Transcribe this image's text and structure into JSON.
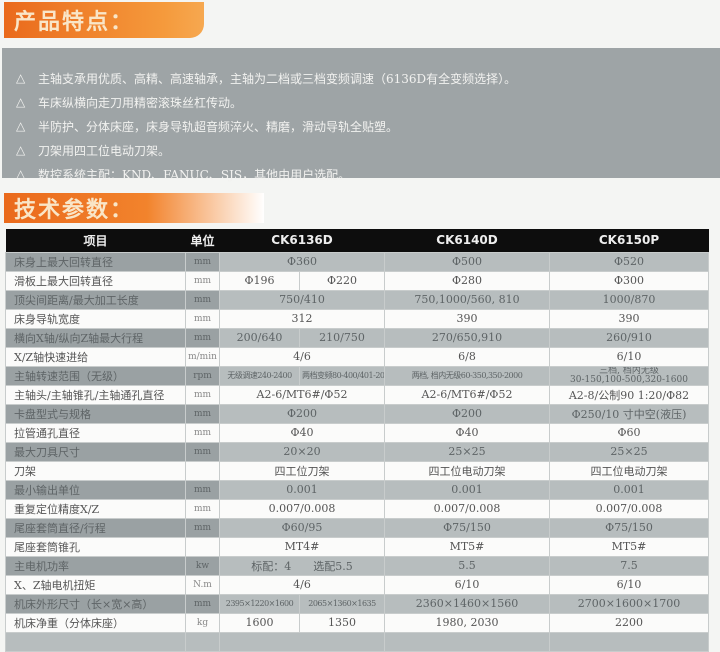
{
  "features_title": "产品特点：",
  "features": [
    "主轴支承用优质、高精、高速轴承，主轴为二档或三档变频调速（6136D有全变频选择）。",
    "车床纵横向走刀用精密滚珠丝杠传动。",
    "半防护、分体床座，床身导轨超音频淬火、精磨，滑动导轨全贴塑。",
    "刀架用四工位电动刀架。",
    "数控系统主配：KND、FANUC、SJS，其他由用户选配。"
  ],
  "bullet": "△",
  "specs_title": "技术参数：",
  "table": {
    "headers": [
      "项目",
      "单位",
      "CK6136D",
      "CK6140D",
      "CK6150P"
    ],
    "rows": [
      {
        "name": "床身上最大回转直径",
        "unit": "mm",
        "a": "Φ360",
        "b": "Φ500",
        "c": "Φ520"
      },
      {
        "name": "滑板上最大回转直径",
        "unit": "mm",
        "a1": "Φ196",
        "a2": "Φ220",
        "b": "Φ280",
        "c": "Φ300"
      },
      {
        "name": "顶尖间距离/最大加工长度",
        "unit": "mm",
        "a": "750/410",
        "b": "750,1000/560, 810",
        "c": "1000/870"
      },
      {
        "name": "床身导轨宽度",
        "unit": "mm",
        "a": "312",
        "b": "390",
        "c": "390"
      },
      {
        "name": "横向X轴/纵向Z轴最大行程",
        "unit": "mm",
        "a1": "200/640",
        "a2": "210/750",
        "b": "270/650,910",
        "c": "260/910"
      },
      {
        "name": "X/Z轴快速进给",
        "unit": "m/min",
        "a": "4/6",
        "b": "6/8",
        "c": "6/10"
      },
      {
        "name": "主轴转速范围（无级）",
        "unit": "rpm",
        "a1": "无级调速240-2400",
        "a2": "两档变频80-400/401-2000",
        "b": "两档, 档内无级60-350,350-2000",
        "c": "三档, 档内无级",
        "c2": "30-150,100-500,320-1600"
      },
      {
        "name": "主轴头/主轴锥孔/主轴通孔直径",
        "unit": "mm",
        "a": "A2-6/MT6#/Φ52",
        "b": "A2-6/MT6#/Φ52",
        "c": "A2-8/公制90 1:20/Φ82"
      },
      {
        "name": "卡盘型式与规格",
        "unit": "mm",
        "a": "Φ200",
        "b": "Φ200",
        "c": "Φ250/10 寸中空(液压)"
      },
      {
        "name": "拉管通孔直径",
        "unit": "mm",
        "a": "Φ40",
        "b": "Φ40",
        "c": "Φ60"
      },
      {
        "name": "最大刀具尺寸",
        "unit": "mm",
        "a": "20×20",
        "b": "25×25",
        "c": "25×25"
      },
      {
        "name": "刀架",
        "unit": "",
        "a": "四工位刀架",
        "b": "四工位电动刀架",
        "c": "四工位电动刀架"
      },
      {
        "name": "最小输出单位",
        "unit": "mm",
        "a": "0.001",
        "b": "0.001",
        "c": "0.001"
      },
      {
        "name": "重复定位精度X/Z",
        "unit": "mm",
        "a": "0.007/0.008",
        "b": "0.007/0.008",
        "c": "0.007/0.008"
      },
      {
        "name": "尾座套筒直径/行程",
        "unit": "mm",
        "a": "Φ60/95",
        "b": "Φ75/150",
        "c": "Φ75/150"
      },
      {
        "name": "尾座套筒锥孔",
        "unit": "",
        "a": "MT4#",
        "b": "MT5#",
        "c": "MT5#"
      },
      {
        "name": "主电机功率",
        "unit": "kw",
        "a": "标配：4　　选配5.5",
        "b": "5.5",
        "c": "7.5"
      },
      {
        "name": "X、Z轴电机扭矩",
        "unit": "N.m",
        "a": "4/6",
        "b": "6/10",
        "c": "6/10"
      },
      {
        "name": "机床外形尺寸（长×宽×高）",
        "unit": "mm",
        "a1": "2395×1220×1600",
        "a2": "2065×1360×1635",
        "b": "2360×1460×1560",
        "c": "2700×1600×1700"
      },
      {
        "name": "机床净重（分体床座）",
        "unit": "kg",
        "a1": "1600",
        "a2": "1350",
        "b": "1980, 2030",
        "c": "2200"
      }
    ]
  }
}
